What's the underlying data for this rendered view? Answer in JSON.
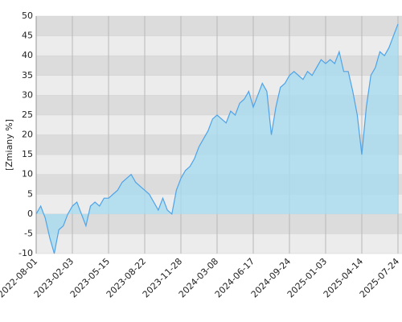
{
  "chart_data": {
    "type": "area",
    "y_label": "[Zmiany %]",
    "categories": [
      "2022-08-01",
      null,
      null,
      null,
      null,
      null,
      null,
      null,
      "2023-02-03",
      null,
      null,
      null,
      null,
      null,
      null,
      null,
      "2023-05-15",
      null,
      null,
      null,
      null,
      null,
      null,
      null,
      "2023-08-22",
      null,
      null,
      null,
      null,
      null,
      null,
      null,
      "2023-11-28",
      null,
      null,
      null,
      null,
      null,
      null,
      null,
      "2024-03-08",
      null,
      null,
      null,
      null,
      null,
      null,
      null,
      "2024-06-17",
      null,
      null,
      null,
      null,
      null,
      null,
      null,
      "2024-09-24",
      null,
      null,
      null,
      null,
      null,
      null,
      null,
      "2025-01-03",
      null,
      null,
      null,
      null,
      null,
      null,
      null,
      "2025-04-14",
      null,
      null,
      null,
      null,
      null,
      null,
      null,
      "2025-07-24"
    ],
    "values": [
      0,
      2,
      -1,
      -6,
      -10,
      -4,
      -3,
      0,
      2,
      3,
      0,
      -3,
      2,
      3,
      2,
      4,
      4,
      5,
      6,
      8,
      9,
      10,
      8,
      7,
      6,
      5,
      3,
      1,
      4,
      1,
      0,
      6,
      9,
      11,
      12,
      14,
      17,
      19,
      21,
      24,
      25,
      24,
      23,
      26,
      25,
      28,
      29,
      31,
      27,
      30,
      33,
      31,
      20,
      27,
      32,
      33,
      35,
      36,
      35,
      34,
      36,
      35,
      37,
      39,
      38,
      39,
      38,
      41,
      36,
      36,
      31,
      25,
      15,
      27,
      35,
      37,
      41,
      40,
      42,
      45,
      48
    ],
    "color": "#4fa3e8",
    "fill_color": "#a8dcef",
    "ylim": [
      -10,
      50
    ],
    "yticks": [
      -10,
      -5,
      0,
      5,
      10,
      15,
      20,
      25,
      30,
      35,
      40,
      45,
      50
    ],
    "grid": true
  }
}
